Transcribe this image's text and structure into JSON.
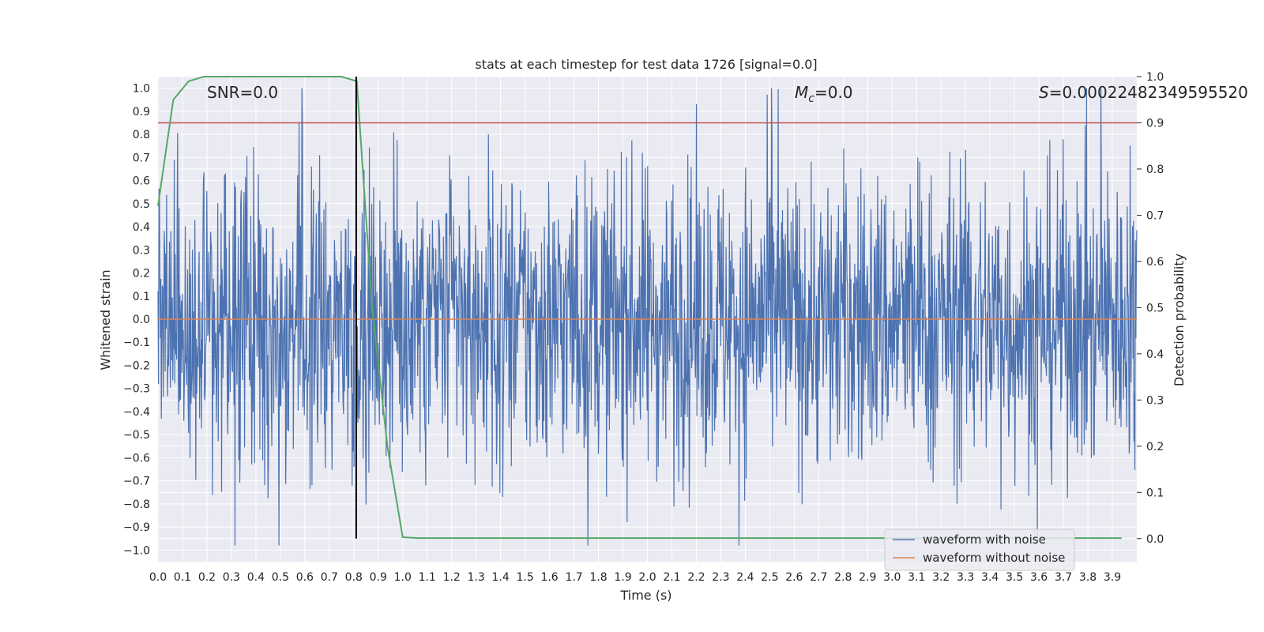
{
  "chart_data": {
    "type": "line",
    "title": "stats at each timestep for test data 1726 [signal=0.0]",
    "xlabel": "Time (s)",
    "ylabel": "Whitened strain",
    "y2label": "Detection probability",
    "xlim": [
      0.0,
      4.0
    ],
    "ylim": [
      -1.05,
      1.05
    ],
    "y2lim": [
      -0.05,
      1.0
    ],
    "grid": true,
    "annotations": {
      "snr": "SNR=0.0",
      "mc_symbol": "M",
      "mc_subscript": "c",
      "mc_value": "=0.0",
      "s_symbol": "S",
      "s_value": "=0.00022482349595520"
    },
    "xticks": [
      "0.0",
      "0.1",
      "0.2",
      "0.3",
      "0.4",
      "0.5",
      "0.6",
      "0.7",
      "0.8",
      "0.9",
      "1.0",
      "1.1",
      "1.2",
      "1.3",
      "1.4",
      "1.5",
      "1.6",
      "1.7",
      "1.8",
      "1.9",
      "2.0",
      "2.1",
      "2.2",
      "2.3",
      "2.4",
      "2.5",
      "2.6",
      "2.7",
      "2.8",
      "2.9",
      "3.0",
      "3.1",
      "3.2",
      "3.3",
      "3.4",
      "3.5",
      "3.6",
      "3.7",
      "3.8",
      "3.9"
    ],
    "yticks": [
      "1.0",
      "0.9",
      "0.8",
      "0.7",
      "0.6",
      "0.5",
      "0.4",
      "0.3",
      "0.2",
      "0.1",
      "0.0",
      "−0.1",
      "−0.2",
      "−0.3",
      "−0.4",
      "−0.5",
      "−0.6",
      "−0.7",
      "−0.8",
      "−0.9",
      "−1.0"
    ],
    "y2ticks": [
      "1.0",
      "0.9",
      "0.8",
      "0.7",
      "0.6",
      "0.5",
      "0.4",
      "0.3",
      "0.2",
      "0.1",
      "0.0"
    ],
    "threshold": 0.9,
    "marker_time": 0.81,
    "legend": {
      "location": "lower-right",
      "entries": [
        "waveform with noise",
        "waveform without noise"
      ]
    },
    "colors": {
      "noise": "#4c72b0",
      "clean": "#dd8452",
      "probability": "#55a868",
      "threshold": "#c44e52",
      "marker": "#000000",
      "background": "#eaeaf2"
    },
    "series": [
      {
        "name": "waveform with noise",
        "samples": 2048,
        "amplitude_min": -0.98,
        "amplitude_max": 1.0,
        "seed": 1726
      },
      {
        "name": "waveform without noise",
        "x": [
          0.0,
          4.0
        ],
        "y": [
          0.0,
          0.0
        ]
      },
      {
        "name": "detection probability",
        "x": [
          0.0,
          0.0625,
          0.125,
          0.1875,
          0.25,
          0.3125,
          0.375,
          0.4375,
          0.5,
          0.5625,
          0.625,
          0.6875,
          0.75,
          0.8125,
          0.875,
          0.9375,
          1.0,
          1.0625,
          1.125,
          1.25,
          1.5,
          2.0,
          2.5,
          3.0,
          3.5,
          3.9375
        ],
        "y": [
          0.72,
          0.95,
          0.99,
          1.0,
          1.0,
          1.0,
          1.0,
          1.0,
          1.0,
          1.0,
          1.0,
          1.0,
          1.0,
          0.99,
          0.5,
          0.2,
          0.003,
          0.001,
          0.001,
          0.001,
          0.001,
          0.001,
          0.001,
          0.001,
          0.001,
          0.001
        ]
      }
    ]
  }
}
